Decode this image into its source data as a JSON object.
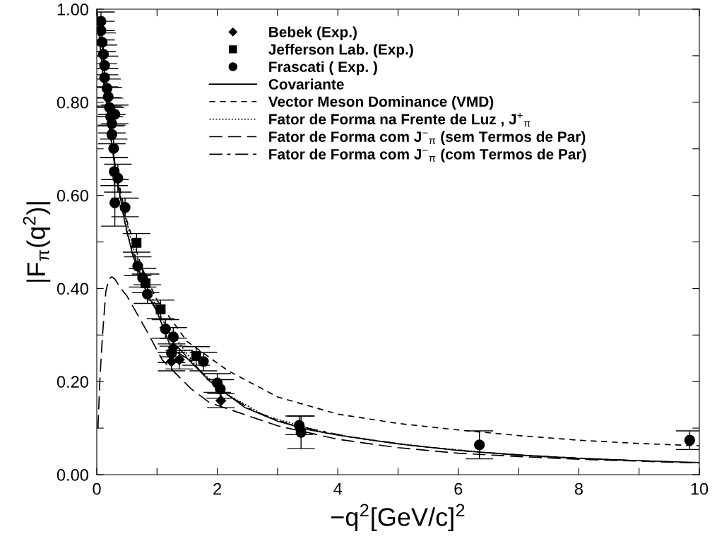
{
  "chart_data": {
    "type": "scatter",
    "xlabel": "−q$^{2}$[GeV/c]$^{2}$",
    "ylabel": "|F$_{π}$(q$^{2}$)|",
    "xlim": [
      0,
      10
    ],
    "ylim": [
      0,
      1
    ],
    "xticks": [
      0,
      {
        "value": 1,
        "label": null
      },
      2,
      {
        "value": 3,
        "label": null
      },
      4,
      {
        "value": 5,
        "label": null
      },
      6,
      {
        "value": 7,
        "label": null
      },
      8,
      {
        "value": 9,
        "label": null
      },
      10
    ],
    "yticks": [
      {
        "value": 0,
        "label": "0.00"
      },
      {
        "value": 0.1,
        "label": null
      },
      {
        "value": 0.2,
        "label": "0.20"
      },
      {
        "value": 0.3,
        "label": null
      },
      {
        "value": 0.4,
        "label": "0.40"
      },
      {
        "value": 0.5,
        "label": null
      },
      {
        "value": 0.6,
        "label": "0.60"
      },
      {
        "value": 0.7,
        "label": null
      },
      {
        "value": 0.8,
        "label": "0.80"
      },
      {
        "value": 0.9,
        "label": null
      },
      {
        "value": 1,
        "label": "1.00"
      }
    ],
    "grid": false,
    "legend": "top",
    "series": [
      {
        "name": "Bebek (Exp.)",
        "marker": "diamond",
        "color": "#000000",
        "x": [
          1.27,
          1.24,
          1.37,
          2.06
        ],
        "values": [
          0.273,
          0.243,
          0.247,
          0.159
        ],
        "errors": [
          0.02,
          0.02,
          0.02,
          0.015
        ]
      },
      {
        "name": "Jefferson Lab. (Exp.)",
        "marker": "square",
        "color": "#000000",
        "x": [
          0.66,
          0.81,
          1.06,
          1.65
        ],
        "values": [
          0.498,
          0.411,
          0.355,
          0.255
        ],
        "errors": [
          0.02,
          0.02,
          0.02,
          0.02
        ]
      },
      {
        "name": "Frascati ( Exp. )",
        "marker": "circle",
        "color": "#000000",
        "x": [
          0.07,
          0.07,
          0.09,
          0.11,
          0.13,
          0.13,
          0.17,
          0.19,
          0.21,
          0.3,
          0.23,
          0.25,
          0.25,
          0.28,
          0.29,
          0.35,
          0.3,
          0.47,
          0.68,
          0.76,
          0.84,
          1.14,
          1.27,
          1.24,
          1.77,
          2.0,
          2.05,
          3.36,
          3.39,
          6.35,
          9.84
        ],
        "values": [
          0.974,
          0.954,
          0.929,
          0.903,
          0.879,
          0.853,
          0.83,
          0.812,
          0.789,
          0.774,
          0.769,
          0.754,
          0.731,
          0.701,
          0.651,
          0.637,
          0.584,
          0.574,
          0.448,
          0.423,
          0.388,
          0.313,
          0.296,
          0.261,
          0.243,
          0.197,
          0.184,
          0.106,
          0.091,
          0.064,
          0.074
        ],
        "errors": [
          0.02,
          0.02,
          0.02,
          0.02,
          0.02,
          0.02,
          0.02,
          0.02,
          0.02,
          0.02,
          0.02,
          0.02,
          0.02,
          0.02,
          0.03,
          0.03,
          0.05,
          0.02,
          0.02,
          0.02,
          0.02,
          0.02,
          0.02,
          0.02,
          0.02,
          0.02,
          0.02,
          0.02,
          0.035,
          0.03,
          0.02
        ]
      },
      {
        "name": "Covariante",
        "type": "line",
        "line_style": "solid",
        "color": "#000000",
        "x": [
          0,
          0.1,
          0.2,
          0.3,
          0.47,
          0.6,
          0.86,
          1.0,
          1.24,
          1.5,
          1.88,
          2.46,
          3.0,
          3.5,
          4.0,
          5.0,
          6.0,
          7.0,
          8.0,
          9.0,
          10.0
        ],
        "values": [
          1.0,
          0.86,
          0.76,
          0.66,
          0.54,
          0.47,
          0.382,
          0.35,
          0.27,
          0.25,
          0.2,
          0.144,
          0.115,
          0.097,
          0.085,
          0.066,
          0.052,
          0.042,
          0.035,
          0.03,
          0.026
        ]
      },
      {
        "name": "Vector Meson Dominance (VMD)",
        "type": "line",
        "line_style": "dashed",
        "color": "#000000",
        "x": [
          0,
          0.1,
          0.2,
          0.3,
          0.5,
          0.75,
          1.0,
          1.5,
          2.17,
          3.0,
          4.0,
          5.0,
          6.0,
          7.0,
          8.0,
          9.0,
          10.0
        ],
        "values": [
          1.0,
          0.857,
          0.75,
          0.667,
          0.545,
          0.444,
          0.375,
          0.286,
          0.224,
          0.167,
          0.13,
          0.11,
          0.096,
          0.084,
          0.074,
          0.067,
          0.062
        ]
      },
      {
        "name": "Fator de Forma na Frente de Luz , J$^{+}$$_{π}$",
        "type": "line",
        "line_style": "dotted",
        "color": "#000000",
        "x": [
          0.05,
          0.15,
          0.25,
          0.4,
          0.7,
          1.1,
          1.7,
          2.2,
          2.8,
          3.8,
          4.5,
          5.5,
          6.5,
          7.5,
          8.5,
          9.5
        ],
        "values": [
          0.93,
          0.81,
          0.71,
          0.59,
          0.44,
          0.33,
          0.224,
          0.17,
          0.126,
          0.09,
          0.075,
          0.059,
          0.047,
          0.038,
          0.032,
          0.028
        ]
      },
      {
        "name": "Fator de Forma com J$^{−}$$_{π}$ (sem Termos de Par)",
        "type": "line",
        "line_style": "longdashed",
        "color": "#000000",
        "x": [
          0.02,
          0.05,
          0.09,
          0.15,
          0.2,
          0.25,
          0.3,
          0.4,
          0.5,
          0.82,
          1.09,
          1.56,
          1.87,
          2.0,
          3.0,
          4.0,
          5.0,
          6.0,
          7.0,
          8.0,
          9.0,
          10.0
        ],
        "values": [
          0.1,
          0.2,
          0.29,
          0.393,
          0.42,
          0.425,
          0.42,
          0.4,
          0.384,
          0.311,
          0.246,
          0.185,
          0.155,
          0.149,
          0.105,
          0.076,
          0.058,
          0.046,
          0.039,
          0.033,
          0.029,
          0.025
        ]
      },
      {
        "name": "Fator de Forma com J$^{−}$$_{π}$ (com Termos de Par)",
        "type": "line",
        "line_style": "dashdot",
        "color": "#000000",
        "x": [
          0.02,
          0.12,
          0.35,
          0.5,
          0.8,
          1.3,
          2.0,
          2.6,
          3.2,
          4.2,
          5.2,
          6.2,
          7.2,
          8.2,
          9.2
        ],
        "values": [
          0.97,
          0.84,
          0.62,
          0.52,
          0.4,
          0.28,
          0.185,
          0.137,
          0.108,
          0.081,
          0.063,
          0.05,
          0.041,
          0.034,
          0.029
        ]
      }
    ]
  }
}
